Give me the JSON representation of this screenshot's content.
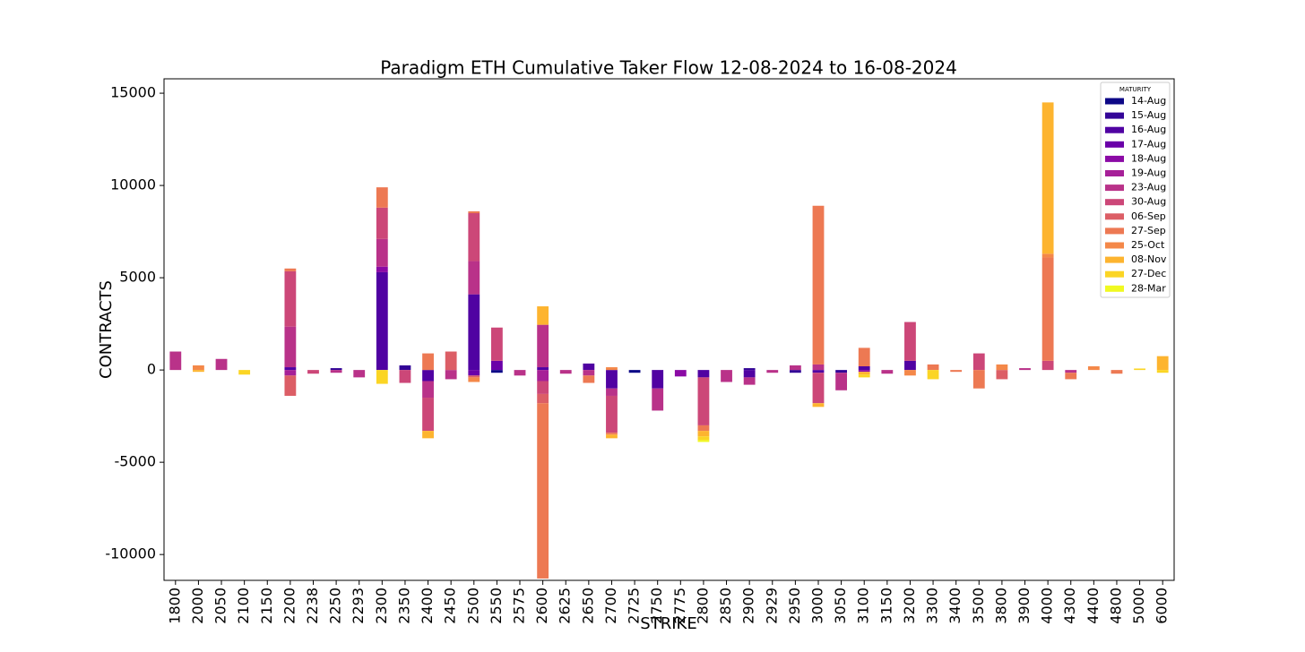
{
  "chart_data": {
    "type": "bar",
    "stacked": true,
    "title": "Paradigm ETH Cumulative Taker Flow 12-08-2024 to 16-08-2024",
    "x_label": "STRIKE",
    "y_label": "CONTRACTS",
    "legend_title": "MATURITY",
    "legend_position": "upper right",
    "categories": [
      "1800",
      "2000",
      "2050",
      "2100",
      "2150",
      "2200",
      "2238",
      "2250",
      "2293",
      "2300",
      "2350",
      "2400",
      "2450",
      "2500",
      "2550",
      "2575",
      "2600",
      "2625",
      "2650",
      "2700",
      "2725",
      "2750",
      "2775",
      "2800",
      "2850",
      "2900",
      "2929",
      "2950",
      "3000",
      "3050",
      "3100",
      "3150",
      "3200",
      "3300",
      "3400",
      "3500",
      "3800",
      "3900",
      "4000",
      "4300",
      "4400",
      "4800",
      "5000",
      "6000"
    ],
    "ylim": [
      -11400,
      15780
    ],
    "yticks": [
      -10000,
      -5000,
      0,
      5000,
      10000,
      15000
    ],
    "series": [
      {
        "name": "14-Aug",
        "color": "#0d0887",
        "values": [
          0,
          0,
          0,
          0,
          0,
          0,
          0,
          0,
          0,
          0,
          0,
          0,
          0,
          0,
          -150,
          0,
          0,
          0,
          0,
          0,
          -150,
          0,
          0,
          0,
          0,
          0,
          0,
          0,
          0,
          0,
          0,
          0,
          0,
          0,
          0,
          0,
          0,
          0,
          0,
          0,
          0,
          0,
          0,
          0
        ]
      },
      {
        "name": "15-Aug",
        "color": "#330597",
        "values": [
          0,
          0,
          0,
          0,
          0,
          0,
          0,
          100,
          0,
          0,
          250,
          0,
          0,
          0,
          0,
          0,
          0,
          0,
          0,
          0,
          0,
          0,
          0,
          0,
          0,
          100,
          0,
          -150,
          0,
          -150,
          0,
          0,
          0,
          0,
          0,
          0,
          0,
          0,
          0,
          0,
          0,
          0,
          0,
          0
        ]
      },
      {
        "name": "16-Aug",
        "color": "#5002a2",
        "values": [
          0,
          0,
          0,
          0,
          0,
          150,
          0,
          0,
          0,
          5300,
          0,
          -600,
          0,
          4100,
          0,
          0,
          150,
          0,
          350,
          -1000,
          0,
          -1000,
          0,
          -400,
          0,
          -400,
          0,
          0,
          -150,
          0,
          200,
          0,
          500,
          0,
          0,
          0,
          0,
          0,
          0,
          0,
          0,
          0,
          0,
          0
        ]
      },
      {
        "name": "17-Aug",
        "color": "#6a00a8",
        "values": [
          0,
          0,
          0,
          0,
          0,
          0,
          0,
          0,
          0,
          0,
          0,
          0,
          0,
          -300,
          500,
          0,
          0,
          0,
          0,
          0,
          0,
          0,
          0,
          0,
          0,
          0,
          0,
          0,
          0,
          0,
          0,
          0,
          0,
          0,
          0,
          0,
          0,
          0,
          0,
          0,
          0,
          0,
          0,
          0
        ]
      },
      {
        "name": "18-Aug",
        "color": "#8b0aa5",
        "values": [
          0,
          0,
          0,
          0,
          0,
          0,
          0,
          0,
          0,
          300,
          0,
          0,
          0,
          0,
          0,
          0,
          0,
          0,
          0,
          0,
          0,
          0,
          -350,
          0,
          0,
          0,
          0,
          0,
          0,
          0,
          -100,
          0,
          0,
          0,
          0,
          0,
          0,
          0,
          0,
          0,
          0,
          0,
          0,
          0
        ]
      },
      {
        "name": "19-Aug",
        "color": "#a62098",
        "values": [
          0,
          0,
          0,
          0,
          0,
          -300,
          0,
          0,
          0,
          0,
          0,
          0,
          0,
          0,
          0,
          0,
          -600,
          0,
          0,
          0,
          0,
          0,
          0,
          0,
          0,
          0,
          0,
          0,
          0,
          0,
          0,
          0,
          0,
          0,
          0,
          0,
          0,
          0,
          0,
          0,
          0,
          0,
          0,
          0
        ]
      },
      {
        "name": "23-Aug",
        "color": "#b93289",
        "values": [
          1000,
          0,
          600,
          0,
          0,
          2200,
          0,
          -150,
          -400,
          1500,
          0,
          -900,
          -500,
          1800,
          0,
          -300,
          2300,
          -200,
          -300,
          -400,
          0,
          -1200,
          0,
          0,
          -650,
          -400,
          -150,
          250,
          300,
          -950,
          0,
          -200,
          0,
          0,
          0,
          0,
          0,
          100,
          0,
          -150,
          0,
          0,
          0,
          0
        ]
      },
      {
        "name": "30-Aug",
        "color": "#cc4778",
        "values": [
          0,
          0,
          0,
          0,
          0,
          3000,
          -200,
          0,
          0,
          1700,
          -700,
          -1800,
          0,
          2600,
          1800,
          0,
          -700,
          0,
          0,
          -2000,
          0,
          0,
          0,
          -2600,
          0,
          0,
          0,
          0,
          -1650,
          0,
          0,
          0,
          2100,
          0,
          0,
          900,
          0,
          0,
          500,
          0,
          0,
          0,
          0,
          0
        ]
      },
      {
        "name": "06-Sep",
        "color": "#dc5e66",
        "values": [
          0,
          0,
          0,
          0,
          0,
          -1100,
          0,
          0,
          0,
          0,
          0,
          0,
          1000,
          -100,
          0,
          0,
          -500,
          0,
          0,
          0,
          0,
          0,
          0,
          0,
          0,
          0,
          0,
          0,
          0,
          0,
          0,
          0,
          0,
          0,
          0,
          0,
          -500,
          0,
          0,
          0,
          0,
          0,
          0,
          0
        ]
      },
      {
        "name": "27-Sep",
        "color": "#ed7953",
        "values": [
          0,
          0,
          0,
          0,
          0,
          150,
          0,
          0,
          0,
          1100,
          0,
          900,
          0,
          100,
          0,
          0,
          -9500,
          0,
          -400,
          -100,
          0,
          0,
          0,
          -300,
          0,
          0,
          0,
          0,
          8600,
          0,
          1000,
          0,
          0,
          300,
          -100,
          -1000,
          0,
          0,
          5600,
          -350,
          0,
          -200,
          0,
          0
        ]
      },
      {
        "name": "25-Oct",
        "color": "#f48849",
        "values": [
          0,
          250,
          0,
          0,
          0,
          0,
          0,
          0,
          0,
          0,
          0,
          0,
          0,
          -250,
          0,
          0,
          0,
          0,
          0,
          150,
          0,
          0,
          0,
          0,
          0,
          0,
          0,
          0,
          0,
          0,
          0,
          0,
          -300,
          0,
          0,
          0,
          300,
          0,
          200,
          0,
          200,
          0,
          0,
          0
        ]
      },
      {
        "name": "08-Nov",
        "color": "#fdb42f",
        "values": [
          0,
          -100,
          0,
          0,
          0,
          0,
          0,
          0,
          0,
          0,
          0,
          -400,
          0,
          0,
          0,
          0,
          1000,
          0,
          0,
          -200,
          0,
          0,
          0,
          -300,
          0,
          0,
          0,
          0,
          -200,
          0,
          -150,
          0,
          0,
          0,
          0,
          0,
          0,
          0,
          8200,
          0,
          0,
          0,
          0,
          750
        ]
      },
      {
        "name": "27-Dec",
        "color": "#fbd524",
        "values": [
          0,
          0,
          0,
          -250,
          0,
          0,
          0,
          0,
          0,
          -750,
          0,
          0,
          0,
          0,
          0,
          0,
          0,
          0,
          0,
          0,
          0,
          0,
          0,
          -200,
          0,
          0,
          0,
          0,
          0,
          0,
          -150,
          0,
          0,
          -500,
          0,
          0,
          0,
          0,
          0,
          0,
          0,
          0,
          80,
          -150
        ]
      },
      {
        "name": "28-Mar",
        "color": "#f0f921",
        "values": [
          0,
          0,
          0,
          0,
          0,
          0,
          0,
          0,
          0,
          0,
          0,
          0,
          0,
          0,
          0,
          0,
          0,
          0,
          0,
          0,
          0,
          0,
          0,
          -100,
          0,
          0,
          0,
          0,
          0,
          0,
          0,
          0,
          0,
          0,
          0,
          0,
          0,
          0,
          0,
          0,
          0,
          0,
          0,
          0
        ]
      }
    ]
  }
}
